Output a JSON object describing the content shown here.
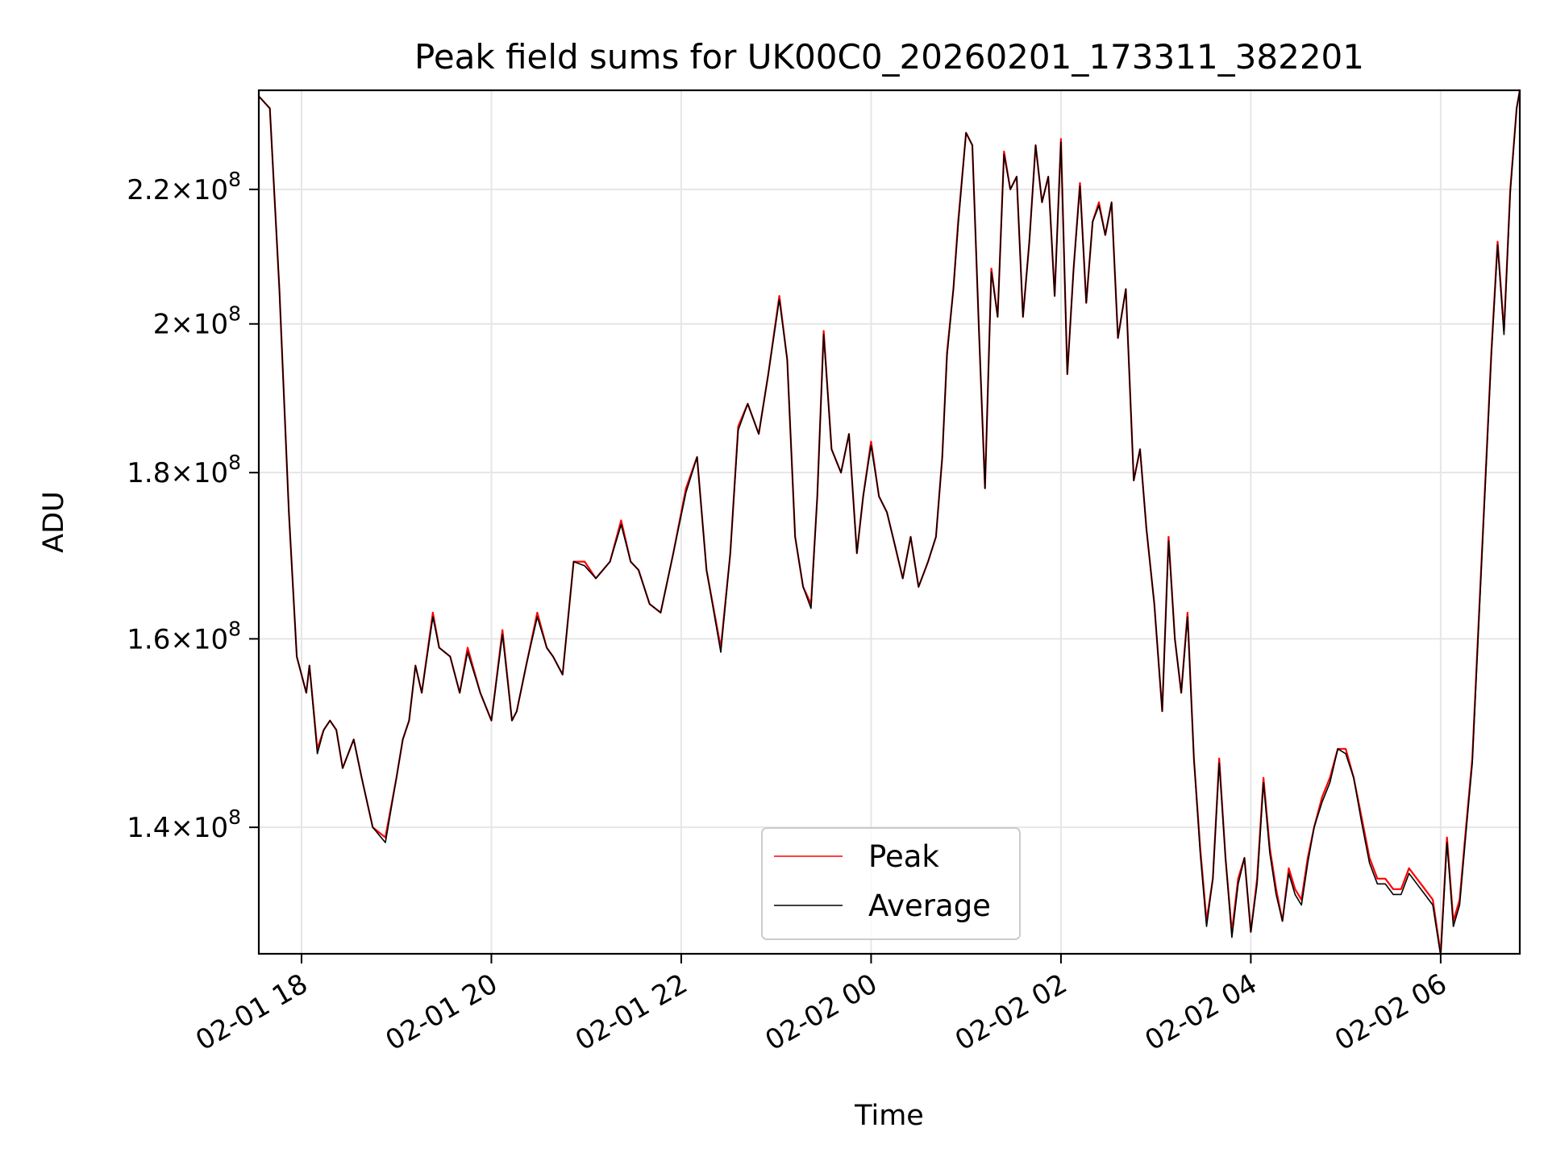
{
  "chart_data": {
    "type": "line",
    "title": "Peak field sums for UK00C0_20260201_173311_382201",
    "xlabel": "Time",
    "ylabel": "ADU",
    "y_scale": "log",
    "xlim": [
      "2026-02-01 17:33",
      "2026-02-02 06:50"
    ],
    "ylim": [
      128000000,
      236000000
    ],
    "grid": true,
    "legend_position": "lower-center",
    "x_ticks": [
      {
        "value": "2026-02-01 18:00",
        "label": "02-01 18"
      },
      {
        "value": "2026-02-01 20:00",
        "label": "02-01 20"
      },
      {
        "value": "2026-02-01 22:00",
        "label": "02-01 22"
      },
      {
        "value": "2026-02-02 00:00",
        "label": "02-02 00"
      },
      {
        "value": "2026-02-02 02:00",
        "label": "02-02 02"
      },
      {
        "value": "2026-02-02 04:00",
        "label": "02-02 04"
      },
      {
        "value": "2026-02-02 06:00",
        "label": "02-02 06"
      }
    ],
    "y_ticks": [
      {
        "value": 140000000,
        "mantissa": "1.4",
        "exponent": "8"
      },
      {
        "value": 160000000,
        "mantissa": "1.6",
        "exponent": "8"
      },
      {
        "value": 180000000,
        "mantissa": "1.8",
        "exponent": "8"
      },
      {
        "value": 200000000,
        "mantissa": "2",
        "exponent": "8"
      },
      {
        "value": 220000000,
        "mantissa": "2.2",
        "exponent": "8"
      }
    ],
    "x": [
      "2026-02-01 17:33",
      "2026-02-01 17:40",
      "2026-02-01 17:46",
      "2026-02-01 17:52",
      "2026-02-01 17:57",
      "2026-02-01 18:03",
      "2026-02-01 18:05",
      "2026-02-01 18:10",
      "2026-02-01 18:14",
      "2026-02-01 18:18",
      "2026-02-01 18:22",
      "2026-02-01 18:26",
      "2026-02-01 18:33",
      "2026-02-01 18:38",
      "2026-02-01 18:45",
      "2026-02-01 18:53",
      "2026-02-01 19:00",
      "2026-02-01 19:04",
      "2026-02-01 19:08",
      "2026-02-01 19:12",
      "2026-02-01 19:16",
      "2026-02-01 19:23",
      "2026-02-01 19:27",
      "2026-02-01 19:34",
      "2026-02-01 19:40",
      "2026-02-01 19:45",
      "2026-02-01 19:53",
      "2026-02-01 20:00",
      "2026-02-01 20:07",
      "2026-02-01 20:13",
      "2026-02-01 20:16",
      "2026-02-01 20:22",
      "2026-02-01 20:29",
      "2026-02-01 20:35",
      "2026-02-01 20:39",
      "2026-02-01 20:45",
      "2026-02-01 20:52",
      "2026-02-01 20:59",
      "2026-02-01 21:06",
      "2026-02-01 21:15",
      "2026-02-01 21:22",
      "2026-02-01 21:28",
      "2026-02-01 21:33",
      "2026-02-01 21:40",
      "2026-02-01 21:47",
      "2026-02-01 21:55",
      "2026-02-01 22:03",
      "2026-02-01 22:10",
      "2026-02-01 22:16",
      "2026-02-01 22:25",
      "2026-02-01 22:31",
      "2026-02-01 22:36",
      "2026-02-01 22:42",
      "2026-02-01 22:49",
      "2026-02-01 22:55",
      "2026-02-01 23:02",
      "2026-02-01 23:07",
      "2026-02-01 23:12",
      "2026-02-01 23:17",
      "2026-02-01 23:22",
      "2026-02-01 23:26",
      "2026-02-01 23:30",
      "2026-02-01 23:35",
      "2026-02-01 23:41",
      "2026-02-01 23:46",
      "2026-02-01 23:51",
      "2026-02-01 23:55",
      "2026-02-02 00:00",
      "2026-02-02 00:05",
      "2026-02-02 00:10",
      "2026-02-02 00:15",
      "2026-02-02 00:20",
      "2026-02-02 00:25",
      "2026-02-02 00:30",
      "2026-02-02 00:36",
      "2026-02-02 00:41",
      "2026-02-02 00:45",
      "2026-02-02 00:48",
      "2026-02-02 00:52",
      "2026-02-02 00:55",
      "2026-02-02 01:00",
      "2026-02-02 01:04",
      "2026-02-02 01:08",
      "2026-02-02 01:12",
      "2026-02-02 01:16",
      "2026-02-02 01:20",
      "2026-02-02 01:24",
      "2026-02-02 01:28",
      "2026-02-02 01:32",
      "2026-02-02 01:36",
      "2026-02-02 01:40",
      "2026-02-02 01:44",
      "2026-02-02 01:48",
      "2026-02-02 01:52",
      "2026-02-02 01:56",
      "2026-02-02 02:00",
      "2026-02-02 02:04",
      "2026-02-02 02:08",
      "2026-02-02 02:12",
      "2026-02-02 02:16",
      "2026-02-02 02:20",
      "2026-02-02 02:24",
      "2026-02-02 02:28",
      "2026-02-02 02:32",
      "2026-02-02 02:36",
      "2026-02-02 02:41",
      "2026-02-02 02:46",
      "2026-02-02 02:50",
      "2026-02-02 02:54",
      "2026-02-02 02:59",
      "2026-02-02 03:04",
      "2026-02-02 03:08",
      "2026-02-02 03:12",
      "2026-02-02 03:16",
      "2026-02-02 03:20",
      "2026-02-02 03:24",
      "2026-02-02 03:28",
      "2026-02-02 03:32",
      "2026-02-02 03:36",
      "2026-02-02 03:40",
      "2026-02-02 03:44",
      "2026-02-02 03:48",
      "2026-02-02 03:52",
      "2026-02-02 03:56",
      "2026-02-02 04:00",
      "2026-02-02 04:04",
      "2026-02-02 04:08",
      "2026-02-02 04:12",
      "2026-02-02 04:16",
      "2026-02-02 04:20",
      "2026-02-02 04:24",
      "2026-02-02 04:28",
      "2026-02-02 04:32",
      "2026-02-02 04:36",
      "2026-02-02 04:40",
      "2026-02-02 04:45",
      "2026-02-02 04:50",
      "2026-02-02 04:55",
      "2026-02-02 05:00",
      "2026-02-02 05:05",
      "2026-02-02 05:10",
      "2026-02-02 05:15",
      "2026-02-02 05:20",
      "2026-02-02 05:25",
      "2026-02-02 05:30",
      "2026-02-02 05:35",
      "2026-02-02 05:40",
      "2026-02-02 05:45",
      "2026-02-02 05:50",
      "2026-02-02 05:55",
      "2026-02-02 06:00",
      "2026-02-02 06:04",
      "2026-02-02 06:08",
      "2026-02-02 06:12",
      "2026-02-02 06:16",
      "2026-02-02 06:20",
      "2026-02-02 06:24",
      "2026-02-02 06:28",
      "2026-02-02 06:32",
      "2026-02-02 06:36",
      "2026-02-02 06:40",
      "2026-02-02 06:44",
      "2026-02-02 06:48",
      "2026-02-02 06:50"
    ],
    "series": [
      {
        "name": "Peak",
        "color": "#ff0000",
        "values": [
          235000000,
          233000000,
          205000000,
          175000000,
          158000000,
          154000000,
          157000000,
          148000000,
          150000000,
          151000000,
          150000000,
          146000000,
          149000000,
          145000000,
          140000000,
          139000000,
          145000000,
          149000000,
          151000000,
          157000000,
          154000000,
          163000000,
          159000000,
          158000000,
          154000000,
          159000000,
          154000000,
          151000000,
          161000000,
          151000000,
          152000000,
          157000000,
          163000000,
          159000000,
          158000000,
          156000000,
          169000000,
          169000000,
          167000000,
          169000000,
          174000000,
          169000000,
          168000000,
          164000000,
          163000000,
          170000000,
          178000000,
          182000000,
          168000000,
          159000000,
          170000000,
          186000000,
          189000000,
          185000000,
          193000000,
          204000000,
          195000000,
          172000000,
          166000000,
          164000000,
          177000000,
          199000000,
          183000000,
          180000000,
          185000000,
          170000000,
          177000000,
          184000000,
          177000000,
          175000000,
          171000000,
          167000000,
          172000000,
          166000000,
          169000000,
          172000000,
          182000000,
          196000000,
          205000000,
          215000000,
          229000000,
          227000000,
          200000000,
          178000000,
          208000000,
          201000000,
          226000000,
          220000000,
          222000000,
          201000000,
          212000000,
          227000000,
          218000000,
          222000000,
          204000000,
          228000000,
          193000000,
          208000000,
          221000000,
          203000000,
          215000000,
          218000000,
          213000000,
          218000000,
          198000000,
          205000000,
          179000000,
          183000000,
          173000000,
          164000000,
          152000000,
          172000000,
          160000000,
          154000000,
          163000000,
          147000000,
          138000000,
          131000000,
          135000000,
          147000000,
          137000000,
          130000000,
          135000000,
          137000000,
          130000000,
          135000000,
          145000000,
          138000000,
          134000000,
          131000000,
          136000000,
          134000000,
          133000000,
          137000000,
          140000000,
          143000000,
          145000000,
          148000000,
          148000000,
          145000000,
          141000000,
          137000000,
          135000000,
          135000000,
          134000000,
          134000000,
          136000000,
          135000000,
          134000000,
          133000000,
          128000000,
          139000000,
          131000000,
          133000000,
          140000000,
          147000000,
          162000000,
          178000000,
          196000000,
          212000000,
          199000000,
          220000000,
          233000000,
          236000000
        ]
      },
      {
        "name": "Average",
        "color": "#000000",
        "values": [
          235000000,
          233000000,
          205000000,
          175000000,
          158000000,
          154000000,
          157000000,
          147500000,
          150000000,
          151000000,
          150000000,
          146000000,
          149000000,
          145000000,
          140000000,
          138500000,
          145000000,
          149000000,
          151000000,
          157000000,
          154000000,
          162500000,
          159000000,
          158000000,
          154000000,
          158500000,
          154000000,
          151000000,
          160500000,
          151000000,
          152000000,
          157000000,
          162500000,
          159000000,
          158000000,
          156000000,
          169000000,
          168500000,
          167000000,
          169000000,
          173500000,
          169000000,
          168000000,
          164000000,
          163000000,
          170000000,
          177500000,
          182000000,
          168000000,
          158500000,
          170000000,
          185500000,
          189000000,
          185000000,
          193000000,
          203500000,
          195000000,
          172000000,
          166000000,
          163500000,
          177000000,
          198500000,
          183000000,
          180000000,
          185000000,
          170000000,
          177000000,
          183500000,
          177000000,
          175000000,
          171000000,
          167000000,
          172000000,
          166000000,
          169000000,
          172000000,
          182000000,
          195500000,
          205000000,
          214500000,
          229000000,
          227000000,
          200000000,
          178000000,
          207500000,
          201000000,
          225500000,
          220000000,
          222000000,
          201000000,
          212000000,
          227000000,
          218000000,
          222000000,
          204000000,
          227500000,
          193000000,
          208000000,
          220500000,
          203000000,
          215000000,
          217500000,
          213000000,
          218000000,
          198000000,
          205000000,
          179000000,
          183000000,
          173000000,
          164000000,
          152000000,
          171500000,
          160000000,
          154000000,
          162500000,
          147000000,
          137500000,
          130500000,
          135000000,
          146500000,
          137000000,
          129500000,
          134500000,
          137000000,
          130000000,
          134500000,
          144500000,
          137500000,
          133500000,
          131000000,
          135500000,
          133500000,
          132500000,
          136500000,
          140000000,
          142500000,
          144500000,
          148000000,
          147500000,
          145000000,
          140500000,
          136500000,
          134500000,
          134500000,
          133500000,
          133500000,
          135500000,
          134500000,
          133500000,
          132500000,
          127800000,
          138500000,
          130500000,
          132500000,
          139500000,
          146500000,
          161500000,
          177500000,
          195500000,
          211500000,
          198500000,
          219500000,
          233000000,
          236000000
        ]
      }
    ]
  }
}
